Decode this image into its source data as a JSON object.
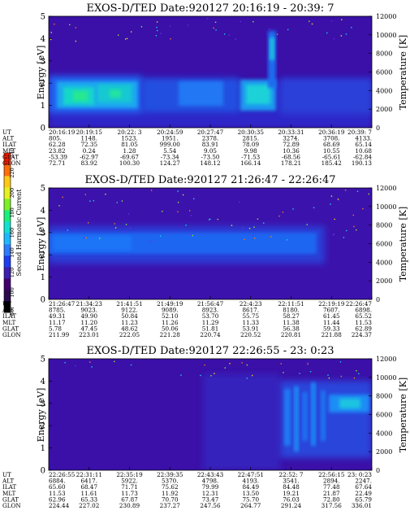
{
  "panels": [
    {
      "title": "EXOS-D/TED  Date:920127  20:16:19 - 20:39: 7",
      "ylabel_left": "Energy [eV]",
      "ylabel_right": "Temperature [K]",
      "left_ticks": [
        "0",
        "1",
        "2",
        "3",
        "4",
        "5"
      ],
      "right_ticks": [
        "0",
        "2000",
        "4000",
        "6000",
        "8000",
        "10000",
        "12000"
      ],
      "ephemeris_labels": [
        "UT",
        "ALT",
        "ILAT",
        "MLT",
        "GLAT",
        "GLON"
      ],
      "ephemeris": [
        [
          "20:16:19",
          "20:19:15",
          "20:22: 3",
          "20:24:59",
          "20:27:47",
          "20:30:35",
          "20:33:31",
          "20:36:19",
          "20:39: 7"
        ],
        [
          "805.",
          "1148.",
          "1523.",
          "1951.",
          "2378.",
          "2815.",
          "3274.",
          "3708.",
          "4133."
        ],
        [
          "62.28",
          "72.35",
          "81.05",
          "999.00",
          "83.91",
          "78.09",
          "72.89",
          "68.69",
          "65.14"
        ],
        [
          "23.82",
          "0.24",
          "1.28",
          "5.54",
          "9.05",
          "9.98",
          "10.36",
          "10.55",
          "10.68"
        ],
        [
          "-53.39",
          "-62.97",
          "-69.67",
          "-73.34",
          "-73.50",
          "-71.53",
          "-68.56",
          "-65.61",
          "-62.84"
        ],
        [
          "72.71",
          "83.92",
          "100.30",
          "124.27",
          "148.12",
          "166.14",
          "178.21",
          "185.42",
          "190.13"
        ]
      ]
    },
    {
      "title": "EXOS-D/TED  Date:920127  21:26:47 - 22:26:47",
      "ylabel_left": "Energy [eV]",
      "ylabel_right": "Temperature [K]",
      "left_ticks": [
        "0",
        "1",
        "2",
        "3",
        "4",
        "5"
      ],
      "right_ticks": [
        "0",
        "2000",
        "4000",
        "6000",
        "8000",
        "10000",
        "12000"
      ],
      "ephemeris_labels": [
        "UT",
        "ALT",
        "ILAT",
        "MLT",
        "GLAT",
        "GLON"
      ],
      "ephemeris": [
        [
          "21:26:47",
          "21:34:23",
          "21:41:51",
          "21:49:19",
          "21:56:47",
          "22:4:23",
          "22:11:51",
          "22:19:19",
          "22:26:47"
        ],
        [
          "8785.",
          "9023.",
          "9122.",
          "9089.",
          "8923.",
          "8617.",
          "8180.",
          "7607.",
          "6898."
        ],
        [
          "49.31",
          "49.90",
          "50.84",
          "52.10",
          "53.70",
          "55.75",
          "58.27",
          "61.45",
          "65.52"
        ],
        [
          "11.17",
          "11.20",
          "11.23",
          "11.26",
          "11.29",
          "11.33",
          "11.38",
          "11.44",
          "11.53"
        ],
        [
          "5.78",
          "47.45",
          "48.62",
          "50.06",
          "51.81",
          "53.91",
          "56.38",
          "59.33",
          "62.89"
        ],
        [
          "211.99",
          "223.01",
          "222.05",
          "221.28",
          "220.74",
          "220.52",
          "220.81",
          "221.88",
          "224.37"
        ]
      ]
    },
    {
      "title": "EXOS-D/TED  Date:920127  22:26:55 - 23: 0:23",
      "ylabel_left": "Energy [eV]",
      "ylabel_right": "Temperature [K]",
      "left_ticks": [
        "0",
        "1",
        "2",
        "3",
        "4",
        "5"
      ],
      "right_ticks": [
        "0",
        "2000",
        "4000",
        "6000",
        "8000",
        "10000",
        "12000"
      ],
      "ephemeris_labels": [
        "UT",
        "ALT",
        "ILAT",
        "MLT",
        "GLAT",
        "GLON"
      ],
      "ephemeris": [
        [
          "22:26:55",
          "22:31:11",
          "22:35:19",
          "22:39:35",
          "22:43:43",
          "22:47:51",
          "22:52: 7",
          "22:56:15",
          "23: 0:23"
        ],
        [
          "6884.",
          "6417.",
          "5922.",
          "5370.",
          "4798.",
          "4193.",
          "3541.",
          "2894.",
          "2247."
        ],
        [
          "65.60",
          "68.47",
          "71.71",
          "75.62",
          "79.99",
          "84.49",
          "84.48",
          "77.48",
          "67.64"
        ],
        [
          "11.53",
          "11.61",
          "11.73",
          "11.92",
          "12.31",
          "13.50",
          "19.21",
          "21.87",
          "22.49"
        ],
        [
          "62.96",
          "65.33",
          "67.87",
          "70.70",
          "73.47",
          "75.70",
          "76.03",
          "72.80",
          "65.79"
        ],
        [
          "224.44",
          "227.02",
          "230.89",
          "237.27",
          "247.56",
          "264.77",
          "291.24",
          "317.56",
          "336.01"
        ]
      ]
    }
  ],
  "colorbar": {
    "label": "Second Harmonic Current",
    "ticks": [
      "80",
      "100",
      "120",
      "140",
      "160",
      "180",
      "200",
      "220",
      "240"
    ],
    "colors": [
      "#000000",
      "#2a0a4d",
      "#40006e",
      "#3c1fb0",
      "#1e3cf0",
      "#2d7bff",
      "#1fb8ff",
      "#14e0d2",
      "#19f07a",
      "#7df028",
      "#e6f01e",
      "#ffc814",
      "#ff6e0a",
      "#ff1e00"
    ]
  },
  "chart_data": [
    {
      "type": "heatmap",
      "title": "EXOS-D/TED  Date:920127  20:16:19 - 20:39: 7",
      "xlabel": "UT",
      "ylabel": "Energy [eV]",
      "y2label": "Temperature [K]",
      "ylim": [
        0,
        5
      ],
      "y2lim": [
        0,
        12000
      ],
      "x": [
        "20:16:19",
        "20:19:15",
        "20:22: 3",
        "20:24:59",
        "20:27:47",
        "20:30:35",
        "20:33:31",
        "20:36:19",
        "20:39: 7"
      ],
      "zlim": [
        80,
        240
      ],
      "bands": [
        {
          "x_range": [
            "20:16:19",
            "20:20:30"
          ],
          "y_range": [
            0.6,
            2.0
          ],
          "level": 215
        },
        {
          "x_range": [
            "20:20:30",
            "20:23:30"
          ],
          "y_range": [
            0.9,
            1.9
          ],
          "level": 205
        },
        {
          "x_range": [
            "20:23:30",
            "20:28:40"
          ],
          "y_range": [
            0.8,
            2.2
          ],
          "level": 165
        },
        {
          "x_range": [
            "20:28:40",
            "20:30:10"
          ],
          "y_range": [
            0.8,
            2.1
          ],
          "level": 200
        },
        {
          "x_range": [
            "20:30:10",
            "20:31:40"
          ],
          "y_range": [
            2.0,
            4.3
          ],
          "level": 175
        },
        {
          "x_range": [
            "20:31:40",
            "20:39: 7"
          ],
          "y_range": [
            0.3,
            2.2
          ],
          "level": 140
        }
      ]
    },
    {
      "type": "heatmap",
      "title": "EXOS-D/TED  Date:920127  21:26:47 - 22:26:47",
      "xlabel": "UT",
      "ylabel": "Energy [eV]",
      "y2label": "Temperature [K]",
      "ylim": [
        0,
        5
      ],
      "y2lim": [
        0,
        12000
      ],
      "x": [
        "21:26:47",
        "21:34:23",
        "21:41:51",
        "21:49:19",
        "21:56:47",
        "22:4:23",
        "22:11:51",
        "22:19:19",
        "22:26:47"
      ],
      "zlim": [
        80,
        240
      ],
      "bands": [
        {
          "x_range": [
            "21:26:47",
            "22:5:00"
          ],
          "y_range": [
            2.2,
            3.0
          ],
          "level": 155
        },
        {
          "x_range": [
            "22:5:00",
            "22:15:00"
          ],
          "y_range": [
            2.1,
            2.9
          ],
          "level": 140
        }
      ]
    },
    {
      "type": "heatmap",
      "title": "EXOS-D/TED  Date:920127  22:26:55 - 23: 0:23",
      "xlabel": "UT",
      "ylabel": "Energy [eV]",
      "y2label": "Temperature [K]",
      "ylim": [
        0,
        5
      ],
      "y2lim": [
        0,
        12000
      ],
      "x": [
        "22:26:55",
        "22:31:11",
        "22:35:19",
        "22:39:35",
        "22:43:43",
        "22:47:51",
        "22:52: 7",
        "22:56:15",
        "23: 0:23"
      ],
      "zlim": [
        80,
        240
      ],
      "bands": [
        {
          "x_range": [
            "22:26:55",
            "22:49:00"
          ],
          "y_range": [
            0.0,
            5.0
          ],
          "level": 115
        },
        {
          "x_range": [
            "22:50:30",
            "22:56:15"
          ],
          "y_range": [
            0.6,
            2.8
          ],
          "level": 150
        },
        {
          "x_range": [
            "22:56:15",
            "23: 0:23"
          ],
          "y_range": [
            2.2,
            2.9
          ],
          "level": 165
        }
      ]
    }
  ]
}
